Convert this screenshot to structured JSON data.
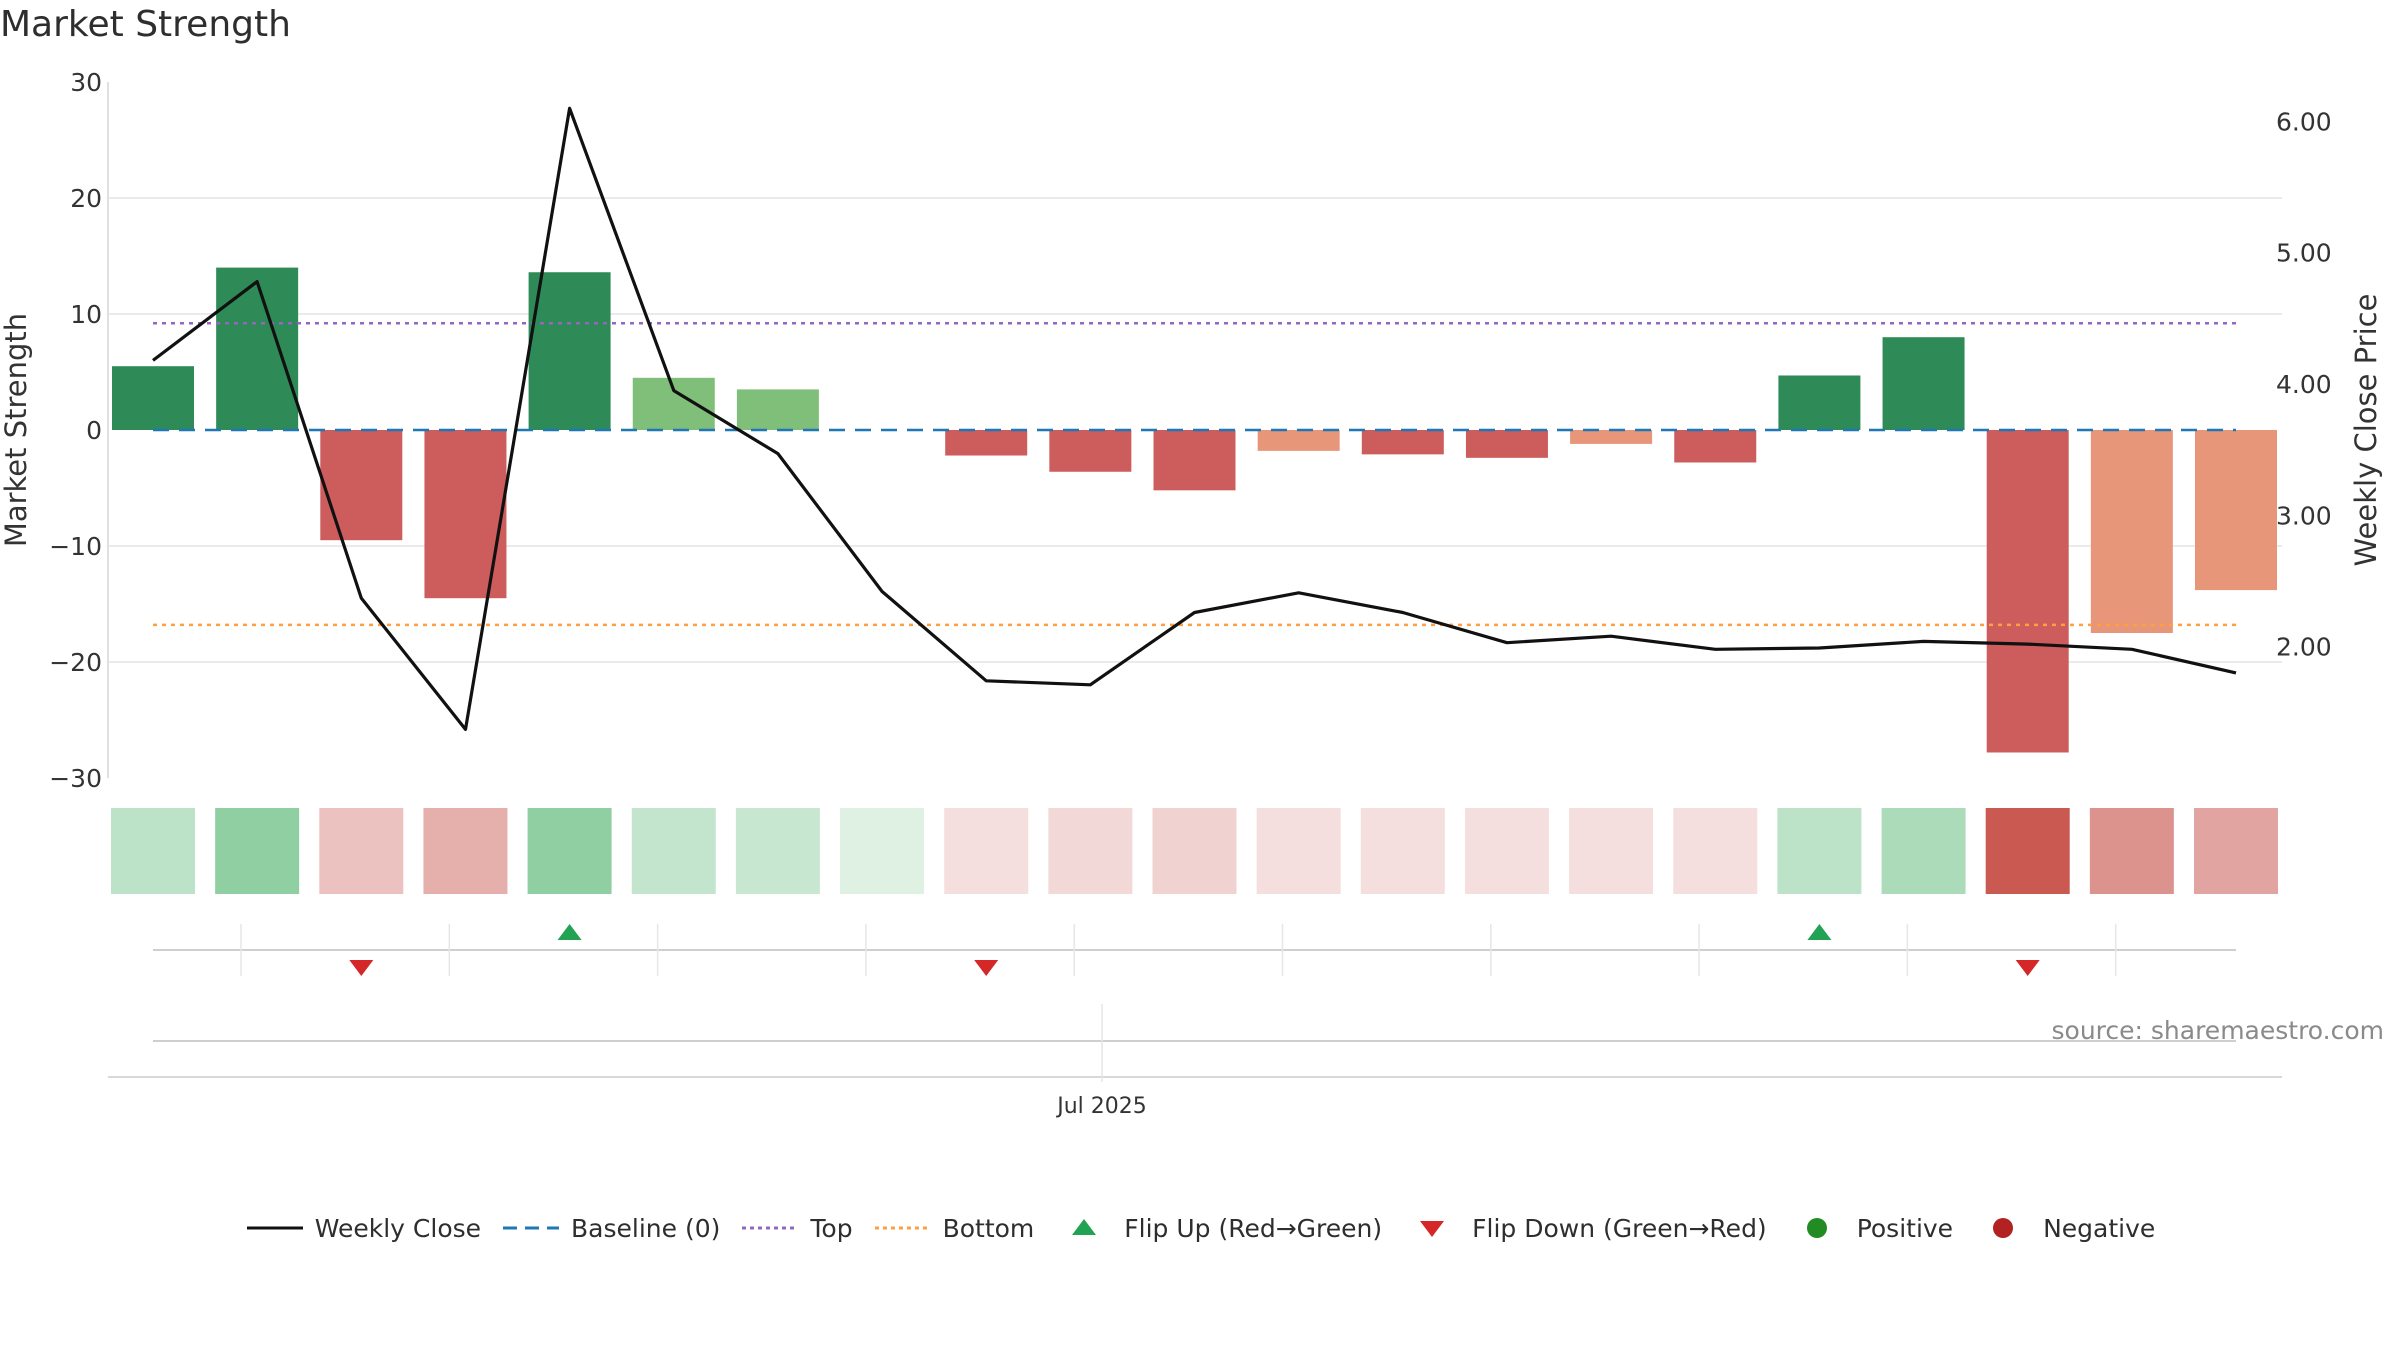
{
  "title": "Market Strength",
  "source": "source: sharemaestro.com",
  "colors": {
    "strong_pos": "#2e8b57",
    "weak_pos": "#80bf7a",
    "strong_neg": "#cd5c5c",
    "weak_neg": "#e8967a",
    "close_line": "#111111",
    "baseline": "#1f77b4",
    "top": "#9467bd",
    "bottom": "#ff9f40",
    "flip_up": "#22a354",
    "flip_down": "#d62728",
    "positive": "#228b22",
    "negative": "#b22222"
  },
  "chart_data": {
    "type": "bar",
    "title": "Market Strength",
    "ylabel": "Market Strength",
    "y2label": "Weekly Close Price",
    "ylim": [
      -30,
      30
    ],
    "y2lim": [
      1.0,
      6.3
    ],
    "yticks": [
      "30",
      "20",
      "10",
      "0",
      "−10",
      "−20",
      "−30"
    ],
    "y2ticks": [
      "6.00",
      "5.00",
      "4.00",
      "3.00",
      "2.00"
    ],
    "xtick_label": "Jul 2025",
    "weeks": 21,
    "strength": [
      5.5,
      14,
      -9.5,
      -14.5,
      13.6,
      4.5,
      3.5,
      0,
      -2.2,
      -3.6,
      -5.2,
      -1.8,
      -2.1,
      -2.4,
      -1.2,
      -2.8,
      4.7,
      8,
      -27.8,
      -17.5,
      -13.8
    ],
    "bar_tone": [
      "strong",
      "strong",
      "strong",
      "strong",
      "strong",
      "weak",
      "weak",
      "weak",
      "strong",
      "strong",
      "strong",
      "weak",
      "strong",
      "strong",
      "weak",
      "strong",
      "strong",
      "strong",
      "strong",
      "weak",
      "weak"
    ],
    "weekly_close": [
      4.18,
      4.78,
      2.37,
      1.37,
      6.1,
      3.95,
      3.47,
      2.42,
      1.74,
      1.71,
      2.26,
      2.41,
      2.26,
      2.03,
      2.08,
      1.98,
      1.99,
      2.04,
      2.02,
      1.98,
      1.8
    ],
    "baseline": 0,
    "top": 9.2,
    "bottom": -16.8,
    "heat_strip": [
      0.3,
      0.5,
      0.35,
      0.45,
      0.5,
      0.27,
      0.25,
      0.15,
      0.18,
      0.22,
      0.26,
      0.18,
      0.18,
      0.18,
      0.18,
      0.18,
      0.3,
      0.38,
      0.95,
      0.62,
      0.52
    ],
    "flips": [
      {
        "week": 2,
        "dir": "down"
      },
      {
        "week": 4,
        "dir": "up"
      },
      {
        "week": 8,
        "dir": "down"
      },
      {
        "week": 16,
        "dir": "up"
      },
      {
        "week": 18,
        "dir": "down"
      }
    ],
    "legend": [
      {
        "label": "Weekly Close",
        "kind": "line",
        "color": "#111111"
      },
      {
        "label": "Baseline (0)",
        "kind": "dash",
        "color": "#1f77b4"
      },
      {
        "label": "Top",
        "kind": "dot",
        "color": "#9467bd"
      },
      {
        "label": "Bottom",
        "kind": "dot",
        "color": "#ff9f40"
      },
      {
        "label": "Flip Up (Red→Green)",
        "kind": "tri-up",
        "color": "#22a354"
      },
      {
        "label": "Flip Down (Green→Red)",
        "kind": "tri-down",
        "color": "#d62728"
      },
      {
        "label": "Positive",
        "kind": "circle",
        "color": "#228b22"
      },
      {
        "label": "Negative",
        "kind": "circle",
        "color": "#b22222"
      }
    ]
  }
}
